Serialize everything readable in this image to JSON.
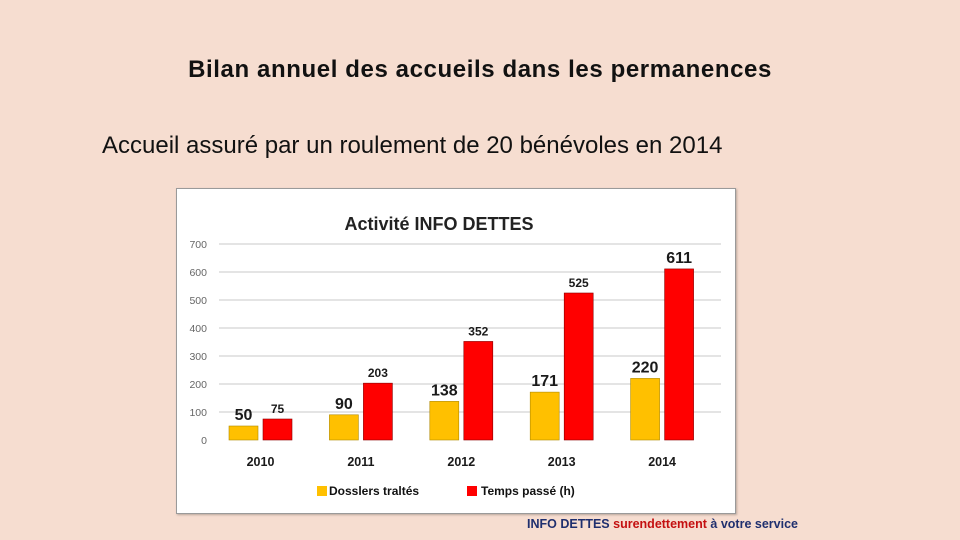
{
  "slide": {
    "title": "Bilan annuel des accueils dans les permanences",
    "subtitle": "Accueil assuré par un roulement de 20 bénévoles en 2014"
  },
  "footer": {
    "org": "INFO DETTES",
    "highlight": "surendettement",
    "rest": "à votre service"
  },
  "colors": {
    "series1": "#ffc000",
    "series2": "#ff0000",
    "background": "#f6ddd0"
  },
  "chart_data": {
    "type": "bar",
    "title": "Activité INFO DETTES",
    "categories": [
      "2010",
      "2011",
      "2012",
      "2013",
      "2014"
    ],
    "series": [
      {
        "name": "Dosslers traltés",
        "values": [
          50,
          90,
          138,
          171,
          220
        ]
      },
      {
        "name": "Temps passé (h)",
        "values": [
          75,
          203,
          352,
          525,
          611
        ]
      }
    ],
    "ylim": [
      0,
      700
    ],
    "yticks": [
      0,
      100,
      200,
      300,
      400,
      500,
      600,
      700
    ],
    "grid": true,
    "legend": "bottom",
    "xlabel": "",
    "ylabel": ""
  }
}
